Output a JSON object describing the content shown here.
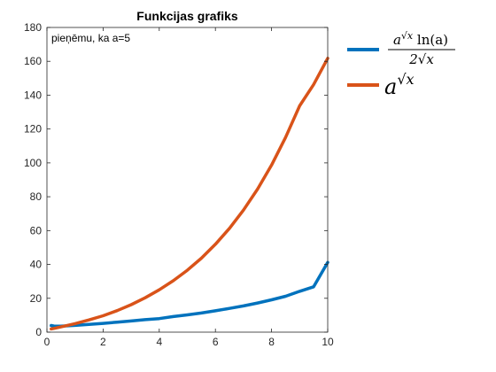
{
  "chart_data": {
    "type": "line",
    "title": "Funkcijas grafiks",
    "annotation": "pieņēmu, ka a=5",
    "xlabel": "",
    "ylabel": "",
    "xlim": [
      0,
      10
    ],
    "ylim": [
      0,
      180
    ],
    "x_ticks": [
      0,
      2,
      4,
      6,
      8,
      10
    ],
    "y_ticks": [
      0,
      20,
      40,
      60,
      80,
      100,
      120,
      140,
      160,
      180
    ],
    "grid": false,
    "legend_position": "outside-right-top",
    "x": [
      0.15,
      0.25,
      0.5,
      1,
      1.5,
      2,
      2.5,
      3,
      3.5,
      4,
      4.5,
      5,
      5.5,
      6,
      6.5,
      7,
      7.5,
      8,
      8.5,
      9,
      9.5,
      10
    ],
    "series": [
      {
        "name": "a^√x ln(a) / (2√x)",
        "legend": {
          "numerator": "a",
          "num_exp": "√x",
          "num_fn": " ln(a)",
          "denominator": "2√x"
        },
        "color": "#0072BD",
        "values": [
          3.9,
          3.6,
          3.5,
          4.0,
          4.6,
          5.2,
          5.9,
          6.6,
          7.4,
          8.0,
          9.2,
          10.2,
          11.3,
          12.6,
          14.0,
          15.5,
          17.2,
          19.1,
          21.2,
          24.1,
          26.8,
          41.2
        ]
      },
      {
        "name": "a^√x",
        "legend": {
          "base": "a",
          "exp": "√x"
        },
        "color": "#D95319",
        "values": [
          1.9,
          2.2,
          3.1,
          5.0,
          7.2,
          9.7,
          12.7,
          16.2,
          20.3,
          25.0,
          30.4,
          36.6,
          43.7,
          51.9,
          61.3,
          72.1,
          84.5,
          98.7,
          115.0,
          133.7,
          146.3,
          161.8
        ]
      }
    ]
  }
}
